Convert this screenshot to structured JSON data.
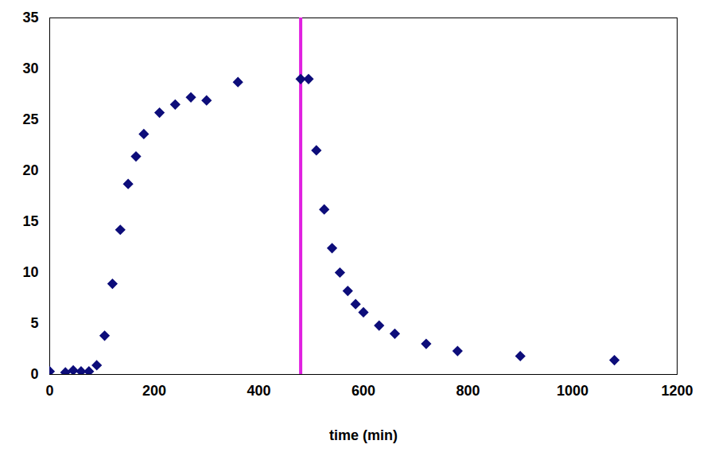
{
  "chart_data": {
    "type": "scatter",
    "x_label": "time (min)",
    "x": [
      0,
      30,
      45,
      60,
      75,
      90,
      105,
      120,
      135,
      150,
      165,
      180,
      210,
      240,
      270,
      300,
      360,
      480,
      495,
      510,
      525,
      540,
      555,
      570,
      585,
      600,
      630,
      660,
      720,
      780,
      900,
      1080
    ],
    "values": [
      0.3,
      0.2,
      0.4,
      0.3,
      0.3,
      0.9,
      3.8,
      8.9,
      14.2,
      18.7,
      21.4,
      23.6,
      25.7,
      26.5,
      27.2,
      26.9,
      28.7,
      29.0,
      29.0,
      22.0,
      16.2,
      12.4,
      10.0,
      8.2,
      6.9,
      6.1,
      4.8,
      4.0,
      3.0,
      2.3,
      1.8,
      1.4
    ],
    "color": "#0d0d7a",
    "marker": "diamond",
    "vlines": [
      {
        "x": 480,
        "color": "#e020e0"
      }
    ],
    "xlim": [
      0,
      1200
    ],
    "xticks": [
      0,
      200,
      400,
      600,
      800,
      1000,
      1200
    ],
    "ylim": [
      0,
      35
    ],
    "yticks": [
      0,
      5,
      10,
      15,
      20,
      25,
      30,
      35
    ],
    "grid": false
  }
}
